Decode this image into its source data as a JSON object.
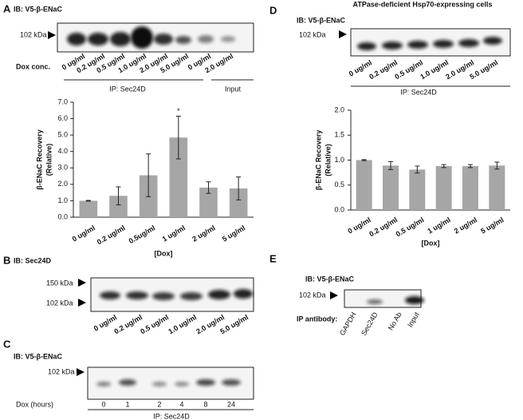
{
  "panels": {
    "A": {
      "letter": "A",
      "ib": "IB: V5-β-ENaC",
      "marker": "102 kDa",
      "dox_label": "Dox conc.",
      "lanes": [
        "0 ug/ml",
        "0.2 ug/ml",
        "0.5 ug/ml",
        "1.0 ug/ml",
        "2.0 ug/ml",
        "5.0 ug/ml",
        "0 ug/ml",
        "2.0 ug/ml"
      ],
      "ip": "IP: Sec24D",
      "input": "Input"
    },
    "B": {
      "letter": "B",
      "ib": "IB: Sec24D",
      "markers": [
        "150 kDa",
        "102 kDa"
      ],
      "lanes": [
        "0 ug/ml",
        "0.2 ug/ml",
        "0.5 ug/ml",
        "1.0 ug/ml",
        "2.0 ug/ml",
        "5.0 ug/ml"
      ]
    },
    "C": {
      "letter": "C",
      "ib": "IB: V5-β-ENaC",
      "marker": "102 kDa",
      "dox_label": "Dox (hours)",
      "lanes": [
        "0",
        "1",
        "2",
        "4",
        "8",
        "24"
      ],
      "ip": "IP: Sec24D"
    },
    "D": {
      "letter": "D",
      "title": "ATPase-deficient Hsp70-expressing cells",
      "ib": "IB: V5-β-ENaC",
      "marker": "102 kDa",
      "lanes": [
        "0 ug/ml",
        "0.2 ug/ml",
        "0.5 ug/ml",
        "1.0 ug/ml",
        "2.0 ug/ml",
        "5.0 ug/ml"
      ],
      "ip": "IP: Sec24D"
    },
    "E": {
      "letter": "E",
      "ib": "IB: V5-β-ENaC",
      "marker": "102 kDa",
      "label": "IP antibody:",
      "lanes": [
        "GAPDH",
        "Sec24D",
        "No Ab",
        "Input"
      ]
    }
  },
  "chart_data": [
    {
      "type": "bar",
      "categories": [
        "0 ug/ml",
        "0.2 ug/ml",
        "0.5ug/ml",
        "1 ug/ml",
        "2 ug/ml",
        "5 ug/ml"
      ],
      "values": [
        1.0,
        1.3,
        2.55,
        4.85,
        1.8,
        1.75
      ],
      "errors": [
        0.02,
        0.55,
        1.3,
        1.3,
        0.35,
        0.7
      ],
      "color": "#a6a6a6",
      "ylabel": [
        "β-ENaC Recovery",
        "(Relative)"
      ],
      "xlabel": "[Dox]",
      "ylim": [
        0,
        7
      ],
      "yticks": [
        {
          "value": 0,
          "label": "0.0"
        },
        {
          "value": 1,
          "label": "1.0"
        },
        {
          "value": 2,
          "label": "2.0"
        },
        {
          "value": 3,
          "label": "3.0"
        },
        {
          "value": 4,
          "label": "4.0"
        },
        {
          "value": 5,
          "label": "5.0"
        },
        {
          "value": 6,
          "label": "6.0"
        },
        {
          "value": 7,
          "label": "7.0"
        }
      ],
      "annotations": [
        {
          "text": "*",
          "x": "1 ug/ml"
        }
      ]
    },
    {
      "type": "bar",
      "categories": [
        "0 ug/ml",
        "0.2 ug/ml",
        "0.5 ug/ml",
        "1 ug/ml",
        "2 ug/ml",
        "5 ug/ml"
      ],
      "values": [
        1.0,
        0.89,
        0.81,
        0.88,
        0.88,
        0.89
      ],
      "errors": [
        0.01,
        0.08,
        0.07,
        0.03,
        0.03,
        0.07
      ],
      "color": "#a6a6a6",
      "ylabel": [
        "β-ENaC Recovery",
        "(Relative)"
      ],
      "xlabel": "[Dox]",
      "ylim": [
        0,
        2
      ],
      "yticks": [
        {
          "value": 0,
          "label": "0.0"
        },
        {
          "value": 0.5,
          "label": "0.5"
        },
        {
          "value": 1,
          "label": "1.0"
        },
        {
          "value": 1.5,
          "label": "1.5"
        },
        {
          "value": 2,
          "label": "2.0"
        }
      ]
    }
  ]
}
